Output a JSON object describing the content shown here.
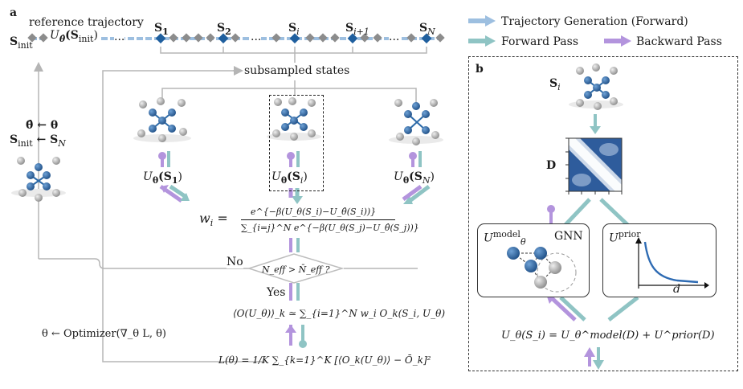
{
  "panel_a": {
    "label": "a",
    "reference_trajectory": "reference trajectory",
    "s_init": "S",
    "s_init_sub": "init",
    "u_theta_hat": "U",
    "u_theta_hat_arg": "(S",
    "s_labels": [
      "S",
      "S",
      "S",
      "S",
      "S"
    ],
    "s_subs": [
      "1",
      "2",
      "i",
      "i+1",
      "N"
    ],
    "dots": "...",
    "subsampled_states": "subsampled states",
    "update_theta": "θ̂ ← θ",
    "update_sinit": "S",
    "update_sinit_sub": "init",
    "update_sinit_rest": " ← S",
    "update_sinit_rest_sub": "N",
    "u_s1": "U",
    "u_s1_arg": "(S",
    "u_s1_sub": "1",
    "u_si_sub": "i",
    "u_sn_sub": "N",
    "weight_lhs": "w",
    "weight_lhs_sub": "i",
    "weight_eq": "=",
    "weight_num": "e^{−β(U_θ(S_i)−U_θ̂(S_i))}",
    "weight_den": "∑_{i=j}^N e^{−β(U_θ(S_j)−U_θ̂(S_j))}",
    "no_label": "No",
    "yes_label": "Yes",
    "neff_condition": "N_eff > N̄_eff ?",
    "observable_eq": "⟨O(U_θ)⟩_k ≃ ∑_{i=1}^N w_i O_k(S_i, U_θ)",
    "optimizer_eq": "θ ← Optimizer(∇_θ L, θ)",
    "loss_eq": "L(θ) = 1/K ∑_{k=1}^K [⟨O_k(U_θ)⟩ − Ō_k]²"
  },
  "legend": {
    "items": [
      {
        "label": "Trajectory Generation (Forward)",
        "color": "#9dbfe0"
      },
      {
        "label": "Forward Pass",
        "color": "#8fc4c4"
      },
      {
        "label": "Backward Pass",
        "color": "#b394dd"
      }
    ]
  },
  "panel_b": {
    "label": "b",
    "state": "S",
    "state_sub": "i",
    "d_label": "D",
    "model_box_title": "U",
    "model_box_sup": "model",
    "model_box_sub": "θ",
    "gnn_label": "GNN",
    "prior_box_title": "U",
    "prior_box_sup": "prior",
    "prior_axis": "d",
    "final_eq_lhs": "U",
    "final_eq": "U_θ(S_i) = U_θ^model(D) + U^prior(D)"
  },
  "colors": {
    "traj_blue": "#9dbfe0",
    "forward_teal": "#8fc4c4",
    "backward_purple": "#b394dd",
    "node_blue": "#1f5f9e",
    "grey_line": "#b5b5b5"
  }
}
